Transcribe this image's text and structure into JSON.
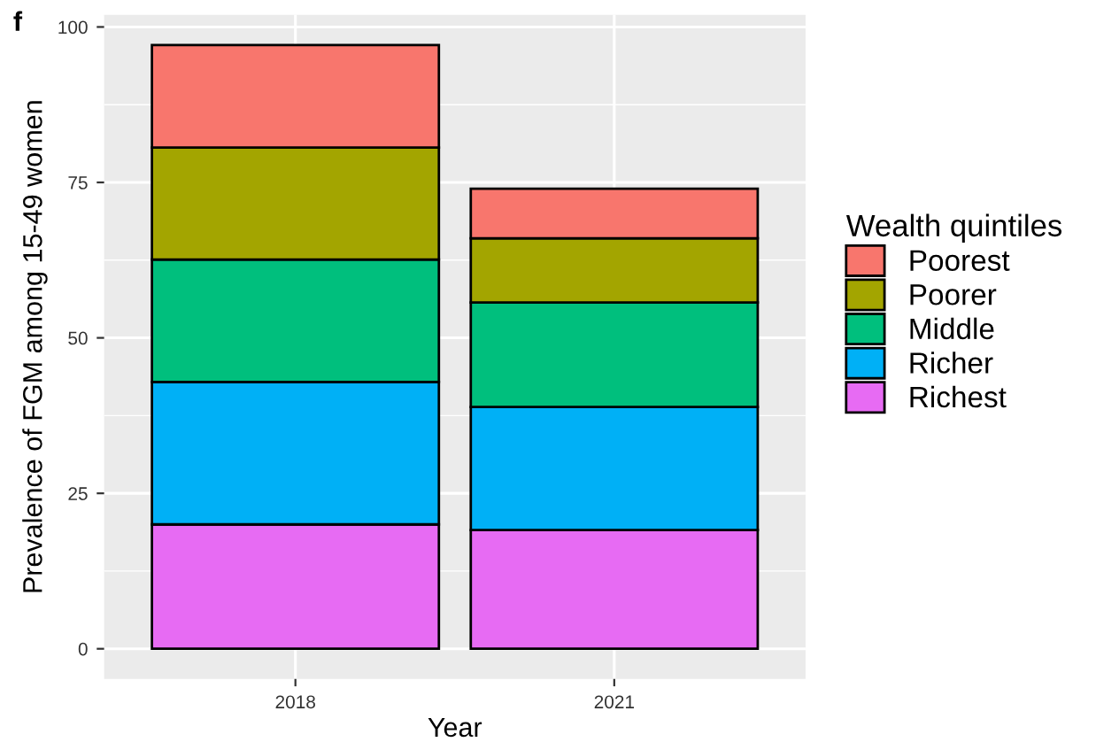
{
  "chart_data": {
    "type": "bar",
    "stacked": true,
    "xlabel": "Year",
    "ylabel": "Prevalence of FGM among 15-49 women",
    "legend_title": "Wealth quintiles",
    "legend": "right",
    "grid": true,
    "annotations": [
      "f"
    ],
    "categories": [
      "2018",
      "2021"
    ],
    "ylim": [
      -4.85,
      101.95
    ],
    "yticks": [
      0,
      25,
      50,
      75,
      100
    ],
    "series": [
      {
        "name": "Richest",
        "color": "#e76bf3",
        "values": [
          20.0,
          19.1
        ]
      },
      {
        "name": "Richer",
        "color": "#00b0f6",
        "values": [
          22.9,
          19.8
        ]
      },
      {
        "name": "Middle",
        "color": "#00bf7d",
        "values": [
          19.7,
          16.8
        ]
      },
      {
        "name": "Poorer",
        "color": "#a3a500",
        "values": [
          18.0,
          10.3
        ]
      },
      {
        "name": "Poorest",
        "color": "#f8766d",
        "values": [
          16.5,
          8.0
        ]
      }
    ]
  }
}
